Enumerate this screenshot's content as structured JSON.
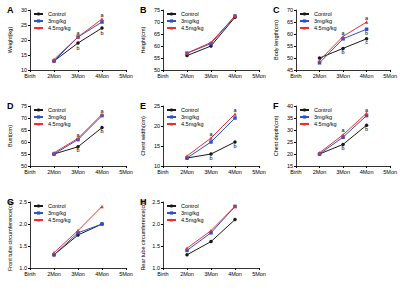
{
  "chart_data": [
    {
      "type": "line",
      "title": "A",
      "y_label": "Weight(kg)",
      "categories": [
        "Birth",
        "2Mon",
        "3Mon",
        "4Mon",
        "5Mon"
      ],
      "series": [
        {
          "name": "Control",
          "color": "#1a1a1a",
          "marker": "circle",
          "values": [
            null,
            13,
            19,
            24,
            null
          ]
        },
        {
          "name": "3mg/kg",
          "color": "#2f4fd0",
          "marker": "square",
          "values": [
            null,
            13,
            21,
            26,
            null
          ]
        },
        {
          "name": "4.5mg/kg",
          "color": "#e8312f",
          "marker": "triangle",
          "values": [
            null,
            13.5,
            21,
            27,
            null
          ]
        }
      ],
      "ylim": [
        10,
        30
      ],
      "yticks": [
        10,
        15,
        20,
        25,
        30
      ],
      "legend": "top-left",
      "grid": false,
      "annotations": [
        {
          "x": "3Mon",
          "y": 22.5,
          "text": "a"
        },
        {
          "x": "3Mon",
          "y": 17.5,
          "text": "b"
        },
        {
          "x": "4Mon",
          "y": 28.5,
          "text": "a"
        },
        {
          "x": "4Mon",
          "y": 22.5,
          "text": "b"
        }
      ]
    },
    {
      "type": "line",
      "title": "B",
      "y_label": "Height(cm)",
      "categories": [
        "Birth",
        "2Mon",
        "3Mon",
        "4Mon",
        "5Mon"
      ],
      "series": [
        {
          "name": "Control",
          "color": "#1a1a1a",
          "marker": "circle",
          "values": [
            null,
            56,
            60,
            72,
            null
          ]
        },
        {
          "name": "3mg/kg",
          "color": "#2f4fd0",
          "marker": "square",
          "values": [
            null,
            57,
            61,
            72.5,
            null
          ]
        },
        {
          "name": "4.5mg/kg",
          "color": "#e8312f",
          "marker": "triangle",
          "values": [
            null,
            57,
            61.5,
            72.5,
            null
          ]
        }
      ],
      "ylim": [
        50,
        75
      ],
      "yticks": [
        50,
        55,
        60,
        65,
        70,
        75
      ],
      "legend": "top-left",
      "grid": false
    },
    {
      "type": "line",
      "title": "C",
      "y_label": "Body length(cm)",
      "categories": [
        "Birth",
        "2Mon",
        "3Mon",
        "4Mon",
        "5Mon"
      ],
      "series": [
        {
          "name": "Control",
          "color": "#1a1a1a",
          "marker": "circle",
          "values": [
            null,
            50,
            54,
            58,
            null
          ]
        },
        {
          "name": "3mg/kg",
          "color": "#2f4fd0",
          "marker": "square",
          "values": [
            null,
            48,
            58,
            62,
            null
          ]
        },
        {
          "name": "4.5mg/kg",
          "color": "#e8312f",
          "marker": "triangle",
          "values": [
            null,
            49,
            59,
            65,
            null
          ]
        }
      ],
      "ylim": [
        45,
        70
      ],
      "yticks": [
        45,
        50,
        55,
        60,
        65,
        70
      ],
      "legend": "top-left",
      "grid": false,
      "annotations": [
        {
          "x": "3Mon",
          "y": 60.5,
          "text": "a"
        },
        {
          "x": "3Mon",
          "y": 52.5,
          "text": "b"
        },
        {
          "x": "4Mon",
          "y": 66.5,
          "text": "a"
        },
        {
          "x": "4Mon",
          "y": 60.5,
          "text": "b"
        },
        {
          "x": "4Mon",
          "y": 56.5,
          "text": "c"
        }
      ]
    },
    {
      "type": "line",
      "title": "D",
      "y_label": "Bust(cm)",
      "categories": [
        "Birth",
        "2Mon",
        "3Mon",
        "4Mon",
        "5Mon"
      ],
      "series": [
        {
          "name": "Control",
          "color": "#1a1a1a",
          "marker": "circle",
          "values": [
            null,
            55,
            58,
            66,
            null
          ]
        },
        {
          "name": "3mg/kg",
          "color": "#2f4fd0",
          "marker": "square",
          "values": [
            null,
            55,
            61,
            71,
            null
          ]
        },
        {
          "name": "4.5mg/kg",
          "color": "#e8312f",
          "marker": "triangle",
          "values": [
            null,
            55.5,
            61.5,
            71.5,
            null
          ]
        }
      ],
      "ylim": [
        50,
        75
      ],
      "yticks": [
        50,
        55,
        60,
        65,
        70,
        75
      ],
      "legend": "top-left",
      "grid": false,
      "annotations": [
        {
          "x": "3Mon",
          "y": 63,
          "text": "a"
        },
        {
          "x": "3Mon",
          "y": 56.5,
          "text": "b"
        },
        {
          "x": "4Mon",
          "y": 73,
          "text": "a"
        },
        {
          "x": "4Mon",
          "y": 64.5,
          "text": "b"
        }
      ]
    },
    {
      "type": "line",
      "title": "E",
      "y_label": "Chest width(cm)",
      "categories": [
        "Birth",
        "2Mon",
        "3Mon",
        "4Mon",
        "5Mon"
      ],
      "series": [
        {
          "name": "Control",
          "color": "#1a1a1a",
          "marker": "circle",
          "values": [
            null,
            12,
            13,
            16,
            null
          ]
        },
        {
          "name": "3mg/kg",
          "color": "#2f4fd0",
          "marker": "square",
          "values": [
            null,
            12,
            16,
            22,
            null
          ]
        },
        {
          "name": "4.5mg/kg",
          "color": "#e8312f",
          "marker": "triangle",
          "values": [
            null,
            12.5,
            17,
            23,
            null
          ]
        }
      ],
      "ylim": [
        10,
        25
      ],
      "yticks": [
        10,
        15,
        20,
        25
      ],
      "legend": "top-left",
      "grid": false,
      "annotations": [
        {
          "x": "3Mon",
          "y": 18,
          "text": "a"
        },
        {
          "x": "3Mon",
          "y": 12,
          "text": "b"
        },
        {
          "x": "4Mon",
          "y": 24,
          "text": "a"
        },
        {
          "x": "4Mon",
          "y": 15,
          "text": "b"
        }
      ]
    },
    {
      "type": "line",
      "title": "F",
      "y_label": "Chest depth(cm)",
      "categories": [
        "Birth",
        "2Mon",
        "3Mon",
        "4Mon",
        "5Mon"
      ],
      "series": [
        {
          "name": "Control",
          "color": "#1a1a1a",
          "marker": "circle",
          "values": [
            null,
            20,
            24,
            32,
            null
          ]
        },
        {
          "name": "3mg/kg",
          "color": "#2f4fd0",
          "marker": "square",
          "values": [
            null,
            20,
            27,
            36,
            null
          ]
        },
        {
          "name": "4.5mg/kg",
          "color": "#e8312f",
          "marker": "triangle",
          "values": [
            null,
            20.5,
            28,
            37,
            null
          ]
        }
      ],
      "ylim": [
        15,
        40
      ],
      "yticks": [
        15,
        20,
        25,
        30,
        35,
        40
      ],
      "legend": "top-left",
      "grid": false,
      "annotations": [
        {
          "x": "3Mon",
          "y": 30,
          "text": "a"
        },
        {
          "x": "3Mon",
          "y": 22.5,
          "text": "b"
        },
        {
          "x": "4Mon",
          "y": 38.5,
          "text": "a"
        },
        {
          "x": "4Mon",
          "y": 30.5,
          "text": "b"
        }
      ]
    },
    {
      "type": "line",
      "title": "G",
      "y_label": "Front tube circumference(cm)",
      "categories": [
        "Birth",
        "2Mon",
        "3Mon",
        "4Mon",
        "5Mon"
      ],
      "series": [
        {
          "name": "Control",
          "color": "#1a1a1a",
          "marker": "circle",
          "values": [
            null,
            1.3,
            1.75,
            2.0,
            null
          ]
        },
        {
          "name": "3mg/kg",
          "color": "#2f4fd0",
          "marker": "square",
          "values": [
            null,
            1.3,
            1.8,
            2.0,
            null
          ]
        },
        {
          "name": "4.5mg/kg",
          "color": "#e8312f",
          "marker": "triangle",
          "values": [
            null,
            1.35,
            1.85,
            2.4,
            null
          ]
        }
      ],
      "ylim": [
        1,
        2.5
      ],
      "yticks": [
        {
          "value": 1,
          "label": "1.0"
        },
        1.5,
        {
          "value": 2,
          "label": "2.0"
        },
        2.5
      ],
      "legend": "top-left",
      "grid": false
    },
    {
      "type": "line",
      "title": "H",
      "y_label": "Rear tube circumference(cm)",
      "categories": [
        "Birth",
        "2Mon",
        "3Mon",
        "4Mon",
        "5Mon"
      ],
      "series": [
        {
          "name": "Control",
          "color": "#1a1a1a",
          "marker": "circle",
          "values": [
            null,
            1.3,
            1.6,
            2.1,
            null
          ]
        },
        {
          "name": "3mg/kg",
          "color": "#2f4fd0",
          "marker": "square",
          "values": [
            null,
            1.4,
            1.8,
            2.4,
            null
          ]
        },
        {
          "name": "4.5mg/kg",
          "color": "#e8312f",
          "marker": "triangle",
          "values": [
            null,
            1.45,
            1.85,
            2.4,
            null
          ]
        }
      ],
      "ylim": [
        1,
        2.5
      ],
      "yticks": [
        {
          "value": 1,
          "label": "1.0"
        },
        1.5,
        {
          "value": 2,
          "label": "2.0"
        },
        2.5
      ],
      "legend": "top-left",
      "grid": false
    }
  ]
}
